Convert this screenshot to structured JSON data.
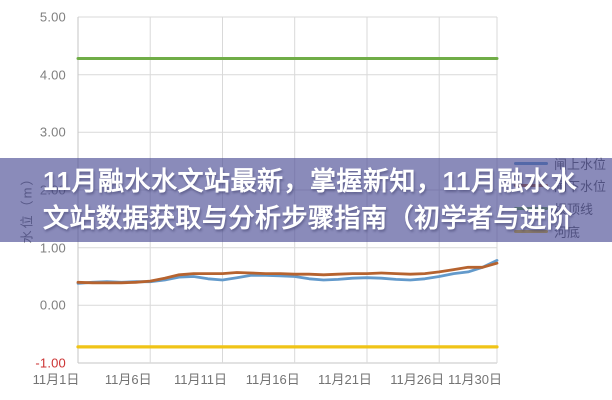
{
  "overlay": {
    "title_line1": "11月融水水文站最新，掌握新知，11月融水水",
    "title_line2": "文站数据获取与分析步骤指南（初学者与进阶",
    "background_rgba": "rgba(75,77,149,0.65)",
    "text_color": "#ffffff"
  },
  "chart_data": {
    "type": "line",
    "title": "",
    "xlabel": "",
    "ylabel": "水位（m）",
    "ylim": [
      -1,
      5
    ],
    "grid": true,
    "legend_position": "right",
    "ytick_values": [
      5,
      4,
      3,
      2,
      1,
      0,
      -1
    ],
    "ytick_labels": [
      "5.00",
      "4.00",
      "3.00",
      "2.00",
      "1.00",
      "0.00",
      "-1.00"
    ],
    "tick_color": "#7f7f7f",
    "negative_tick_color": "#cc3333",
    "grid_color": "#d9d9d9",
    "axis_color": "#c6c6c6",
    "x_range_days": [
      0,
      29
    ],
    "xtick_days": [
      0,
      5,
      10,
      15,
      20,
      25,
      29
    ],
    "xtick_labels": [
      "11月1日",
      "11月6日",
      "11月11日",
      "11月16日",
      "11月21日",
      "11月26日",
      "11月30日"
    ],
    "series": [
      {
        "name": "闸上水位",
        "color": "#639acb",
        "width": 2.8,
        "values": [
          0.38,
          0.4,
          0.41,
          0.4,
          0.41,
          0.41,
          0.44,
          0.49,
          0.5,
          0.46,
          0.44,
          0.48,
          0.52,
          0.52,
          0.51,
          0.5,
          0.46,
          0.44,
          0.45,
          0.47,
          0.48,
          0.47,
          0.45,
          0.44,
          0.46,
          0.5,
          0.55,
          0.58,
          0.66,
          0.78
        ]
      },
      {
        "name": "闸下水位",
        "color": "#b6632f",
        "width": 2.8,
        "values": [
          0.4,
          0.39,
          0.39,
          0.39,
          0.4,
          0.42,
          0.47,
          0.53,
          0.55,
          0.55,
          0.55,
          0.57,
          0.56,
          0.55,
          0.55,
          0.54,
          0.54,
          0.53,
          0.54,
          0.55,
          0.55,
          0.56,
          0.55,
          0.54,
          0.55,
          0.58,
          0.62,
          0.66,
          0.66,
          0.73
        ]
      },
      {
        "name": "坝顶线",
        "color": "#70ad47",
        "width": 3,
        "constant": 4.28
      },
      {
        "name": "河底",
        "color": "#f0c417",
        "width": 3.2,
        "constant": -0.72
      }
    ]
  }
}
